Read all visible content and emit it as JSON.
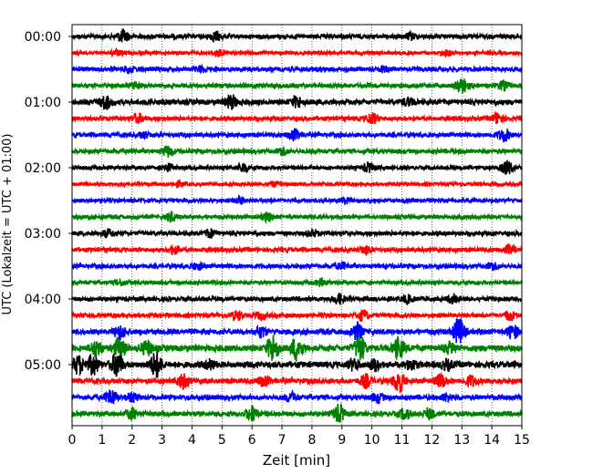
{
  "chart_data": {
    "type": "line",
    "title": "",
    "xlabel": "Zeit  [min]",
    "ylabel": "UTC (Lokalzeit = UTC + 01:00)",
    "xlim": [
      0,
      15
    ],
    "x_ticks": [
      0,
      1,
      2,
      3,
      4,
      5,
      6,
      7,
      8,
      9,
      10,
      11,
      12,
      13,
      14,
      15
    ],
    "x_tick_labels": [
      "0",
      "1",
      "2",
      "3",
      "4",
      "5",
      "6",
      "7",
      "8",
      "9",
      "10",
      "11",
      "12",
      "13",
      "14",
      "15"
    ],
    "y_tick_labels": [
      {
        "row": 0,
        "label": "00:00"
      },
      {
        "row": 4,
        "label": "01:00"
      },
      {
        "row": 8,
        "label": "02:00"
      },
      {
        "row": 12,
        "label": "03:00"
      },
      {
        "row": 16,
        "label": "04:00"
      },
      {
        "row": 20,
        "label": "05:00"
      }
    ],
    "grid": "vertical-dotted",
    "trace_colors": [
      "#000000",
      "#ff0000",
      "#0000ff",
      "#008000"
    ],
    "row_minutes": 15,
    "rows": [
      {
        "start": "00:00",
        "amplitude": 0.25,
        "events": [
          [
            1.7,
            0.7
          ],
          [
            4.8,
            0.5
          ],
          [
            11.3,
            0.35
          ]
        ]
      },
      {
        "start": "00:15",
        "amplitude": 0.2,
        "events": [
          [
            1.5,
            0.3
          ],
          [
            4.9,
            0.3
          ],
          [
            12.5,
            0.25
          ]
        ]
      },
      {
        "start": "00:30",
        "amplitude": 0.25,
        "events": [
          [
            1.9,
            0.35
          ],
          [
            4.3,
            0.3
          ],
          [
            10.4,
            0.3
          ]
        ]
      },
      {
        "start": "00:45",
        "amplitude": 0.25,
        "events": [
          [
            2.1,
            0.4
          ],
          [
            13.0,
            0.9
          ],
          [
            14.4,
            0.5
          ]
        ]
      },
      {
        "start": "01:00",
        "amplitude": 0.3,
        "events": [
          [
            1.1,
            0.8
          ],
          [
            5.3,
            0.8
          ],
          [
            7.5,
            0.6
          ],
          [
            11.2,
            0.4
          ]
        ]
      },
      {
        "start": "01:15",
        "amplitude": 0.25,
        "events": [
          [
            2.2,
            0.5
          ],
          [
            10.0,
            0.6
          ],
          [
            14.2,
            0.6
          ]
        ]
      },
      {
        "start": "01:30",
        "amplitude": 0.25,
        "events": [
          [
            7.4,
            0.6
          ],
          [
            14.4,
            0.7
          ],
          [
            2.4,
            0.3
          ]
        ]
      },
      {
        "start": "01:45",
        "amplitude": 0.25,
        "events": [
          [
            3.2,
            0.6
          ],
          [
            7.0,
            0.4
          ]
        ]
      },
      {
        "start": "02:00",
        "amplitude": 0.22,
        "events": [
          [
            3.2,
            0.45
          ],
          [
            5.7,
            0.5
          ],
          [
            9.9,
            0.5
          ],
          [
            14.5,
            0.8
          ]
        ]
      },
      {
        "start": "02:15",
        "amplitude": 0.2,
        "events": [
          [
            3.6,
            0.25
          ],
          [
            6.7,
            0.25
          ]
        ]
      },
      {
        "start": "02:30",
        "amplitude": 0.22,
        "events": [
          [
            5.6,
            0.35
          ],
          [
            9.1,
            0.3
          ]
        ]
      },
      {
        "start": "02:45",
        "amplitude": 0.22,
        "events": [
          [
            3.3,
            0.5
          ],
          [
            6.5,
            0.45
          ]
        ]
      },
      {
        "start": "03:00",
        "amplitude": 0.25,
        "events": [
          [
            1.2,
            0.4
          ],
          [
            4.6,
            0.45
          ],
          [
            8.0,
            0.35
          ]
        ]
      },
      {
        "start": "03:15",
        "amplitude": 0.25,
        "events": [
          [
            3.4,
            0.45
          ],
          [
            9.8,
            0.45
          ],
          [
            14.6,
            0.5
          ]
        ]
      },
      {
        "start": "03:30",
        "amplitude": 0.25,
        "events": [
          [
            4.2,
            0.35
          ],
          [
            9.0,
            0.35
          ],
          [
            14.0,
            0.4
          ]
        ]
      },
      {
        "start": "03:45",
        "amplitude": 0.22,
        "events": [
          [
            1.6,
            0.3
          ],
          [
            8.3,
            0.35
          ]
        ]
      },
      {
        "start": "04:00",
        "amplitude": 0.25,
        "events": [
          [
            8.9,
            0.55
          ],
          [
            11.2,
            0.4
          ],
          [
            12.7,
            0.45
          ]
        ]
      },
      {
        "start": "04:15",
        "amplitude": 0.25,
        "events": [
          [
            5.5,
            0.5
          ],
          [
            6.3,
            0.35
          ],
          [
            9.7,
            0.55
          ],
          [
            14.6,
            0.5
          ]
        ]
      },
      {
        "start": "04:30",
        "amplitude": 0.3,
        "events": [
          [
            1.6,
            0.8
          ],
          [
            6.3,
            0.6
          ],
          [
            9.5,
            1.0
          ],
          [
            12.9,
            1.6
          ],
          [
            14.7,
            0.8
          ]
        ]
      },
      {
        "start": "04:45",
        "amplitude": 0.35,
        "events": [
          [
            0.8,
            0.9
          ],
          [
            1.6,
            1.3
          ],
          [
            2.5,
            0.8
          ],
          [
            6.7,
            1.6
          ],
          [
            7.5,
            1.4
          ],
          [
            9.6,
            1.4
          ],
          [
            10.9,
            1.2
          ],
          [
            12.6,
            0.6
          ]
        ]
      },
      {
        "start": "05:00",
        "amplitude": 0.35,
        "events": [
          [
            0.2,
            1.0
          ],
          [
            0.7,
            1.1
          ],
          [
            1.5,
            1.4
          ],
          [
            2.8,
            1.5
          ],
          [
            4.6,
            0.5
          ],
          [
            9.4,
            0.6
          ],
          [
            10.1,
            0.6
          ],
          [
            11.3,
            0.5
          ],
          [
            12.5,
            0.5
          ]
        ]
      },
      {
        "start": "05:15",
        "amplitude": 0.3,
        "events": [
          [
            3.7,
            0.8
          ],
          [
            6.4,
            0.6
          ],
          [
            9.8,
            0.7
          ],
          [
            10.9,
            1.3
          ],
          [
            12.3,
            0.7
          ],
          [
            13.3,
            0.6
          ]
        ]
      },
      {
        "start": "05:30",
        "amplitude": 0.28,
        "events": [
          [
            1.3,
            0.9
          ],
          [
            2.0,
            0.5
          ],
          [
            7.3,
            0.5
          ],
          [
            10.2,
            0.5
          ],
          [
            12.5,
            0.4
          ]
        ]
      },
      {
        "start": "05:45",
        "amplitude": 0.28,
        "events": [
          [
            2.0,
            0.6
          ],
          [
            6.0,
            0.9
          ],
          [
            8.9,
            1.0
          ],
          [
            11.1,
            0.6
          ],
          [
            11.9,
            0.55
          ]
        ]
      }
    ]
  }
}
